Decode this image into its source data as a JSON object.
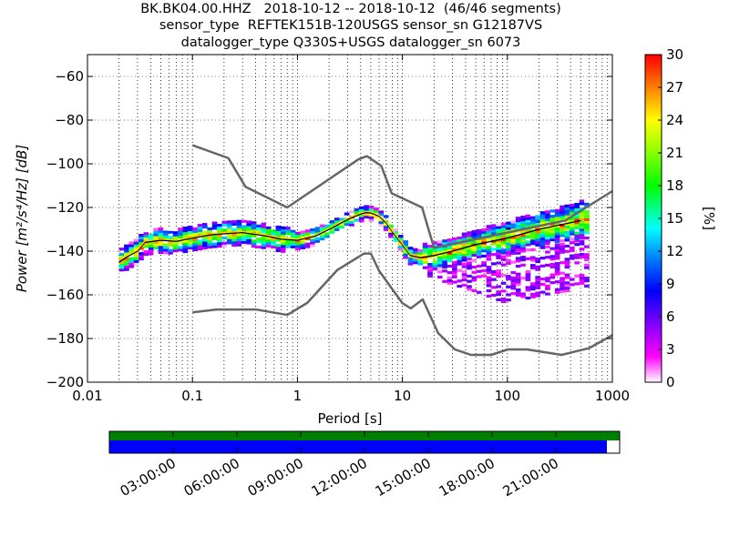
{
  "title_lines": [
    "BK.BK04.00.HHZ   2018-10-12 -- 2018-10-12  (46/46 segments)",
    "sensor_type  REFTEK151B-120USGS sensor_sn G12187VS",
    "datalogger_type Q330S+USGS datalogger_sn 6073"
  ],
  "chart_data": {
    "type": "heatmap",
    "xlabel": "Period [s]",
    "ylabel": "Power [m²/s⁴/Hz] [dB]",
    "x_scale": "log",
    "xlim": [
      0.01,
      1000
    ],
    "ylim": [
      -200,
      -50
    ],
    "x_ticks": [
      {
        "v": 0.01,
        "label": "0.01"
      },
      {
        "v": 0.1,
        "label": "0.1"
      },
      {
        "v": 1,
        "label": "1"
      },
      {
        "v": 10,
        "label": "10"
      },
      {
        "v": 100,
        "label": "100"
      },
      {
        "v": 1000,
        "label": "1000"
      }
    ],
    "y_ticks": [
      -60,
      -80,
      -100,
      -120,
      -140,
      -160,
      -180,
      -200
    ],
    "grid": "dotted vertical at log-decade minors",
    "colorbar": {
      "label": "[%]",
      "min": 0,
      "max": 30,
      "ticks": [
        0,
        3,
        6,
        9,
        12,
        15,
        18,
        21,
        24,
        27,
        30
      ],
      "colormap": "pqlx"
    },
    "series": [
      {
        "role": "noise_model_high",
        "color": "#666666",
        "x": [
          0.1,
          0.22,
          0.32,
          0.8,
          3.8,
          4.6,
          6.3,
          7.9,
          15.4,
          20,
          354.8,
          1000
        ],
        "y": [
          -91.5,
          -97.4,
          -110.5,
          -120,
          -98,
          -96.5,
          -101,
          -113.5,
          -120,
          -138.5,
          -126,
          -112.5
        ]
      },
      {
        "role": "noise_model_low",
        "color": "#666666",
        "x": [
          0.1,
          0.17,
          0.4,
          0.8,
          1.24,
          2.4,
          4.3,
          5,
          6,
          10,
          12,
          15.6,
          21.9,
          31.6,
          45,
          70,
          101,
          154,
          328,
          600,
          1000
        ],
        "y": [
          -168,
          -166.7,
          -166.7,
          -169.2,
          -163.7,
          -148.6,
          -141.1,
          -141.1,
          -149,
          -163.8,
          -166.2,
          -162.1,
          -177.5,
          -185,
          -187.5,
          -187.5,
          -185,
          -185,
          -187.5,
          -184.4,
          -178.5
        ]
      },
      {
        "role": "median",
        "color": "#000000",
        "x": [
          0.02,
          0.025,
          0.03,
          0.035,
          0.05,
          0.07,
          0.1,
          0.15,
          0.2,
          0.3,
          0.5,
          0.7,
          1,
          1.5,
          2,
          3,
          4,
          4.5,
          5,
          6,
          7,
          8,
          10,
          12,
          15,
          20,
          30,
          50,
          100,
          200,
          500
        ],
        "y": [
          -145,
          -142,
          -140,
          -136,
          -135,
          -135.5,
          -134,
          -132.5,
          -132,
          -131.5,
          -133,
          -134.5,
          -135,
          -133,
          -130,
          -125.5,
          -123,
          -122.3,
          -122.5,
          -124,
          -127,
          -131,
          -137,
          -142,
          -143,
          -142,
          -140,
          -137,
          -134,
          -130,
          -126
        ]
      },
      {
        "role": "mode",
        "color": "#ffd700",
        "x": [
          0.02,
          0.025,
          0.03,
          0.035,
          0.05,
          0.07,
          0.1,
          0.15,
          0.2,
          0.3,
          0.5,
          0.7,
          1,
          1.5,
          2,
          3,
          4,
          4.5,
          5,
          6,
          7,
          8,
          10,
          12,
          15
        ],
        "y": [
          -144,
          -141.5,
          -139.5,
          -135.5,
          -134.5,
          -135,
          -133.5,
          -132,
          -131.5,
          -131,
          -132.5,
          -134,
          -134.5,
          -132.5,
          -129.5,
          -125,
          -122.5,
          -121.8,
          -122,
          -123.5,
          -126.5,
          -130.5,
          -136.5,
          -141.5,
          -142.5
        ]
      }
    ],
    "timeline": {
      "tick_labels": [
        "03:00:00",
        "06:00:00",
        "09:00:00",
        "12:00:00",
        "15:00:00",
        "18:00:00",
        "21:00:00"
      ],
      "range_hours": [
        0,
        24
      ],
      "data_coverage_fraction": 1.0,
      "psd_coverage_fraction": 0.975,
      "data_color": "#008000",
      "psd_color": "#0000ff"
    }
  }
}
